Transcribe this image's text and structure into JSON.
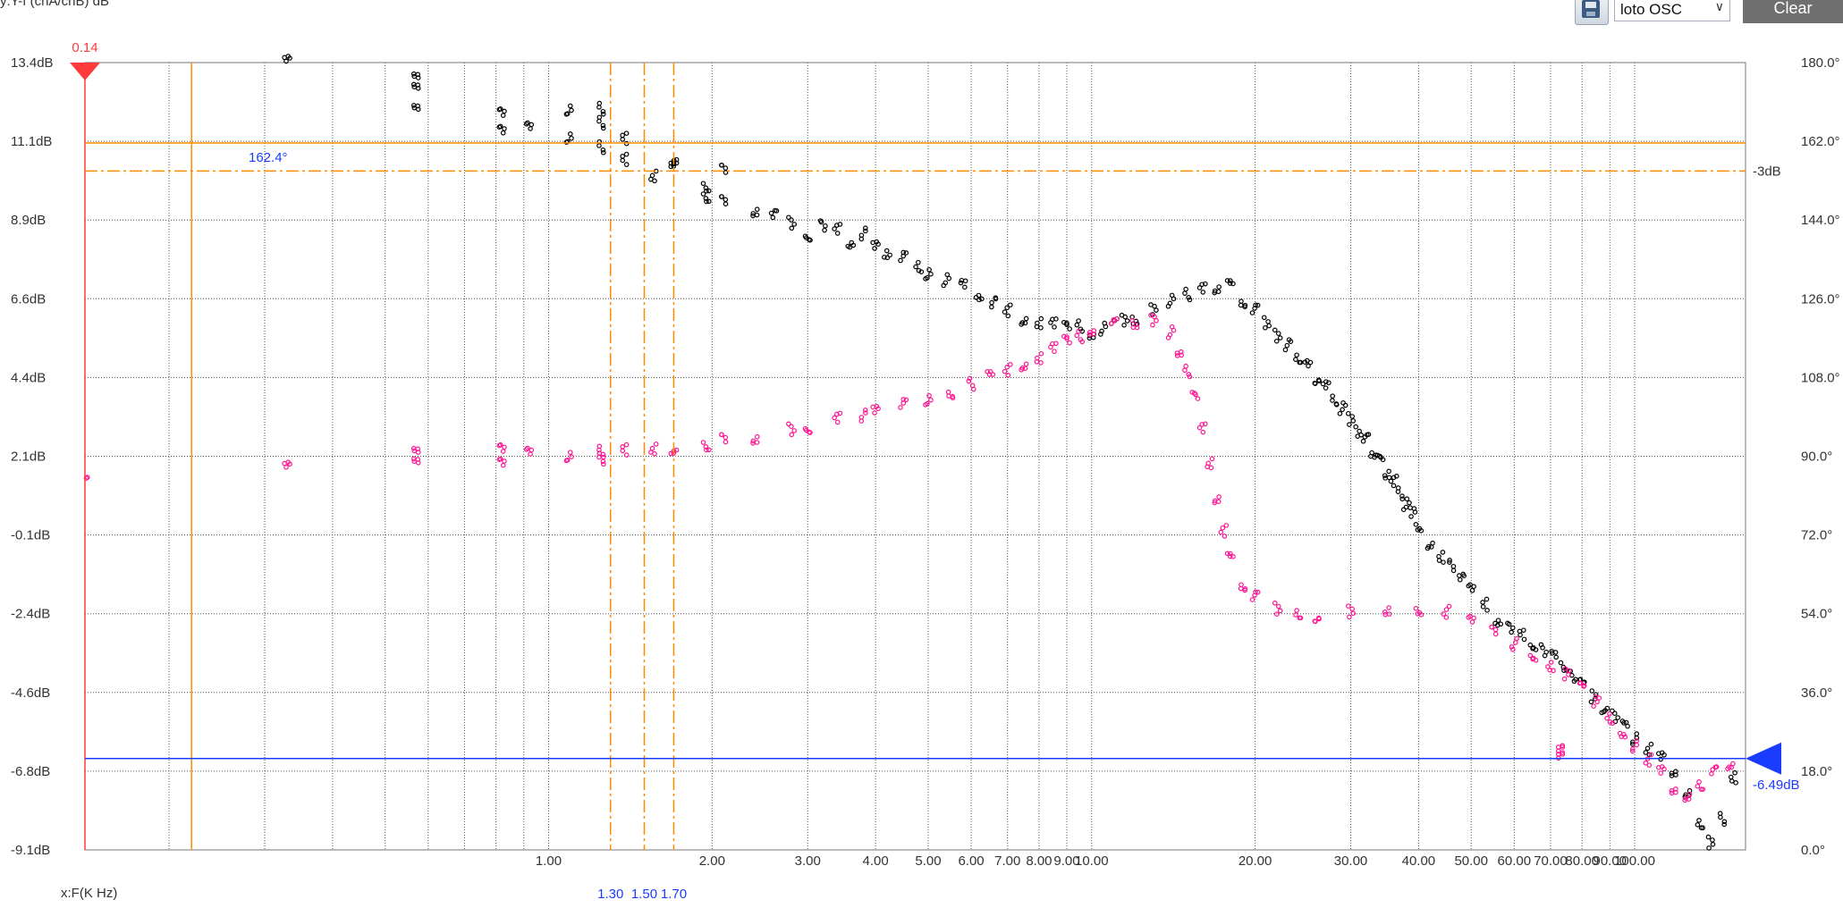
{
  "header": {
    "axis_label": "y:Y-f (chA/chB) dB"
  },
  "toolbar": {
    "mode_value": "loto OSC",
    "clear_label": "Clear",
    "save_icon": "floppy-disk-icon"
  },
  "colors": {
    "mag": "#000000",
    "phase": "#ff1493",
    "red_cursor": "#ff3b3b",
    "orange": "#ff8c00",
    "blue": "#1a3cff",
    "grid": "#555555",
    "blue_label": "#1a3cff"
  },
  "chart_data": {
    "type": "scatter",
    "xlabel": "x:F(K Hz)",
    "x_scale": "log",
    "xlim": [
      0.14,
      160
    ],
    "ylim_left": [
      -9.1,
      13.4
    ],
    "ylim_right": [
      0,
      180
    ],
    "left_ticks": [
      "13.4dB",
      "11.1dB",
      "8.9dB",
      "6.6dB",
      "4.4dB",
      "2.1dB",
      "-0.1dB",
      "-2.4dB",
      "-4.6dB",
      "-6.8dB",
      "-9.1dB"
    ],
    "right_ticks": [
      "180.0°",
      "162.0°",
      "144.0°",
      "126.0°",
      "108.0°",
      "90.0°",
      "72.0°",
      "54.0°",
      "36.0°",
      "18.0°",
      "0.0°"
    ],
    "x_tick_labels": [
      {
        "v": 1,
        "t": "1.00"
      },
      {
        "v": 2,
        "t": "2.00"
      },
      {
        "v": 3,
        "t": "3.00"
      },
      {
        "v": 4,
        "t": "4.00"
      },
      {
        "v": 5,
        "t": "5.00"
      },
      {
        "v": 6,
        "t": "6.00"
      },
      {
        "v": 7,
        "t": "7.00"
      },
      {
        "v": 8,
        "t": "8.00"
      },
      {
        "v": 9,
        "t": "9.00"
      },
      {
        "v": 10,
        "t": "10.00"
      },
      {
        "v": 20,
        "t": "20.00"
      },
      {
        "v": 30,
        "t": "30.00"
      },
      {
        "v": 40,
        "t": "40.00"
      },
      {
        "v": 50,
        "t": "50.00"
      },
      {
        "v": 60,
        "t": "60.00"
      },
      {
        "v": 70,
        "t": "70.00"
      },
      {
        "v": 80,
        "t": "80.00"
      },
      {
        "v": 90,
        "t": "90.00"
      },
      {
        "v": 100,
        "t": "100.00"
      }
    ],
    "cursors": {
      "red_x": {
        "value": 0.14,
        "label": "0.14"
      },
      "orange_x": 0.22,
      "dashed_x": [
        {
          "value": 1.3,
          "label": "1.30"
        },
        {
          "value": 1.5,
          "label": "1.50"
        },
        {
          "value": 1.7,
          "label": "1.70"
        }
      ],
      "orange_h_db": 11.1,
      "dashed_h_db": 10.3,
      "dashed_h_label": "-3dB",
      "phase_marker_label": "162.4°",
      "blue_h_db": -6.49,
      "blue_h_label": "-6.49dB"
    },
    "series": [
      {
        "name": "",
        "color": "#000000",
        "points": [
          [
            0.33,
            13.4
          ],
          [
            0.57,
            12.9
          ],
          [
            0.57,
            12.6
          ],
          [
            0.57,
            12.0
          ],
          [
            0.82,
            11.9
          ],
          [
            0.82,
            11.4
          ],
          [
            0.92,
            11.5
          ],
          [
            1.09,
            12.1
          ],
          [
            1.09,
            11.3
          ],
          [
            1.25,
            12.1
          ],
          [
            1.25,
            11.7
          ],
          [
            1.25,
            11.0
          ],
          [
            1.38,
            11.2
          ],
          [
            1.38,
            10.6
          ],
          [
            1.56,
            10.2
          ],
          [
            1.7,
            10.7
          ],
          [
            1.7,
            10.6
          ],
          [
            1.95,
            9.9
          ],
          [
            1.95,
            9.6
          ],
          [
            2.1,
            10.3
          ],
          [
            2.1,
            9.4
          ],
          [
            2.4,
            9.2
          ],
          [
            2.6,
            9.0
          ],
          [
            2.8,
            8.8
          ],
          [
            3.0,
            8.5
          ],
          [
            3.2,
            8.7
          ],
          [
            3.4,
            8.6
          ],
          [
            3.6,
            8.3
          ],
          [
            3.8,
            8.5
          ],
          [
            4.0,
            8.1
          ],
          [
            4.2,
            8.0
          ],
          [
            4.5,
            7.8
          ],
          [
            4.8,
            7.6
          ],
          [
            5.0,
            7.4
          ],
          [
            5.4,
            7.2
          ],
          [
            5.8,
            7.0
          ],
          [
            6.2,
            6.8
          ],
          [
            6.6,
            6.5
          ],
          [
            7.0,
            6.3
          ],
          [
            7.5,
            6.1
          ],
          [
            8.0,
            6.0
          ],
          [
            8.5,
            5.9
          ],
          [
            9.0,
            5.8
          ],
          [
            9.5,
            5.9
          ],
          [
            10.0,
            5.7
          ],
          [
            10.5,
            5.8
          ],
          [
            11.0,
            5.9
          ],
          [
            11.5,
            6.0
          ],
          [
            12.0,
            6.1
          ],
          [
            13.0,
            6.3
          ],
          [
            14.0,
            6.6
          ],
          [
            15.0,
            6.8
          ],
          [
            16.0,
            6.9
          ],
          [
            17.0,
            7.0
          ],
          [
            18.0,
            7.0
          ],
          [
            19.0,
            6.6
          ],
          [
            20.0,
            6.3
          ],
          [
            21.0,
            6.0
          ],
          [
            22.0,
            5.6
          ],
          [
            23.0,
            5.3
          ],
          [
            24.0,
            5.0
          ],
          [
            25.0,
            4.7
          ],
          [
            26.0,
            4.4
          ],
          [
            27.0,
            4.1
          ],
          [
            28.0,
            3.8
          ],
          [
            29.0,
            3.5
          ],
          [
            30.0,
            3.2
          ],
          [
            31.0,
            2.9
          ],
          [
            32.0,
            2.6
          ],
          [
            33.0,
            2.3
          ],
          [
            34.0,
            2.0
          ],
          [
            35.0,
            1.7
          ],
          [
            36.0,
            1.4
          ],
          [
            37.0,
            1.1
          ],
          [
            38.0,
            0.8
          ],
          [
            39.0,
            0.5
          ],
          [
            40.0,
            0.2
          ],
          [
            42.0,
            -0.3
          ],
          [
            44.0,
            -0.7
          ],
          [
            46.0,
            -1.0
          ],
          [
            48.0,
            -1.4
          ],
          [
            50.0,
            -1.7
          ],
          [
            53.0,
            -2.1
          ],
          [
            56.0,
            -2.5
          ],
          [
            59.0,
            -2.8
          ],
          [
            62.0,
            -3.0
          ],
          [
            65.0,
            -3.2
          ],
          [
            68.0,
            -3.4
          ],
          [
            71.0,
            -3.6
          ],
          [
            74.0,
            -3.8
          ],
          [
            77.0,
            -4.1
          ],
          [
            80.0,
            -4.4
          ],
          [
            84.0,
            -4.7
          ],
          [
            88.0,
            -5.0
          ],
          [
            92.0,
            -5.3
          ],
          [
            96.0,
            -5.6
          ],
          [
            100.0,
            -5.9
          ],
          [
            106.0,
            -6.2
          ],
          [
            112.0,
            -6.5
          ],
          [
            118.0,
            -6.8
          ],
          [
            125.0,
            -7.4
          ],
          [
            132.0,
            -8.3
          ],
          [
            138.0,
            -8.9
          ],
          [
            145.0,
            -8.2
          ],
          [
            152.0,
            -7.0
          ]
        ]
      },
      {
        "name": "",
        "color": "#ff1493",
        "points": [
          [
            0.14,
            1.7
          ],
          [
            0.33,
            1.8
          ],
          [
            0.57,
            1.9
          ],
          [
            0.57,
            2.2
          ],
          [
            0.82,
            2.3
          ],
          [
            0.82,
            1.9
          ],
          [
            0.92,
            2.2
          ],
          [
            1.09,
            2.2
          ],
          [
            1.25,
            2.3
          ],
          [
            1.25,
            2.1
          ],
          [
            1.38,
            2.3
          ],
          [
            1.56,
            2.4
          ],
          [
            1.7,
            2.4
          ],
          [
            1.95,
            2.5
          ],
          [
            2.1,
            2.6
          ],
          [
            2.4,
            2.7
          ],
          [
            2.8,
            2.9
          ],
          [
            3.0,
            3.0
          ],
          [
            3.4,
            3.2
          ],
          [
            3.8,
            3.3
          ],
          [
            4.0,
            3.4
          ],
          [
            4.5,
            3.6
          ],
          [
            5.0,
            3.8
          ],
          [
            5.5,
            4.0
          ],
          [
            6.0,
            4.2
          ],
          [
            6.5,
            4.4
          ],
          [
            7.0,
            4.6
          ],
          [
            7.5,
            4.8
          ],
          [
            8.0,
            5.0
          ],
          [
            8.5,
            5.2
          ],
          [
            9.0,
            5.4
          ],
          [
            9.5,
            5.6
          ],
          [
            10.0,
            5.8
          ],
          [
            11.0,
            5.9
          ],
          [
            12.0,
            6.0
          ],
          [
            13.0,
            6.0
          ],
          [
            14.0,
            5.7
          ],
          [
            14.5,
            5.2
          ],
          [
            15.0,
            4.6
          ],
          [
            15.5,
            3.8
          ],
          [
            16.0,
            2.9
          ],
          [
            16.5,
            2.0
          ],
          [
            17.0,
            1.0
          ],
          [
            17.5,
            0.0
          ],
          [
            18.0,
            -0.8
          ],
          [
            19.0,
            -1.5
          ],
          [
            20.0,
            -1.9
          ],
          [
            22.0,
            -2.2
          ],
          [
            24.0,
            -2.3
          ],
          [
            26.0,
            -2.4
          ],
          [
            30.0,
            -2.3
          ],
          [
            35.0,
            -2.2
          ],
          [
            40.0,
            -2.2
          ],
          [
            45.0,
            -2.3
          ],
          [
            50.0,
            -2.6
          ],
          [
            55.0,
            -2.9
          ],
          [
            60.0,
            -3.2
          ],
          [
            65.0,
            -3.5
          ],
          [
            70.0,
            -3.8
          ],
          [
            75.0,
            -4.1
          ],
          [
            80.0,
            -4.5
          ],
          [
            85.0,
            -4.9
          ],
          [
            90.0,
            -5.3
          ],
          [
            95.0,
            -5.7
          ],
          [
            100.0,
            -6.1
          ],
          [
            106.0,
            -6.5
          ],
          [
            112.0,
            -6.9
          ],
          [
            118.0,
            -7.3
          ],
          [
            125.0,
            -7.5
          ],
          [
            132.0,
            -7.2
          ],
          [
            140.0,
            -6.9
          ],
          [
            150.0,
            -6.6
          ],
          [
            73.0,
            -6.3
          ],
          [
            73.0,
            -6.5
          ]
        ]
      }
    ]
  }
}
